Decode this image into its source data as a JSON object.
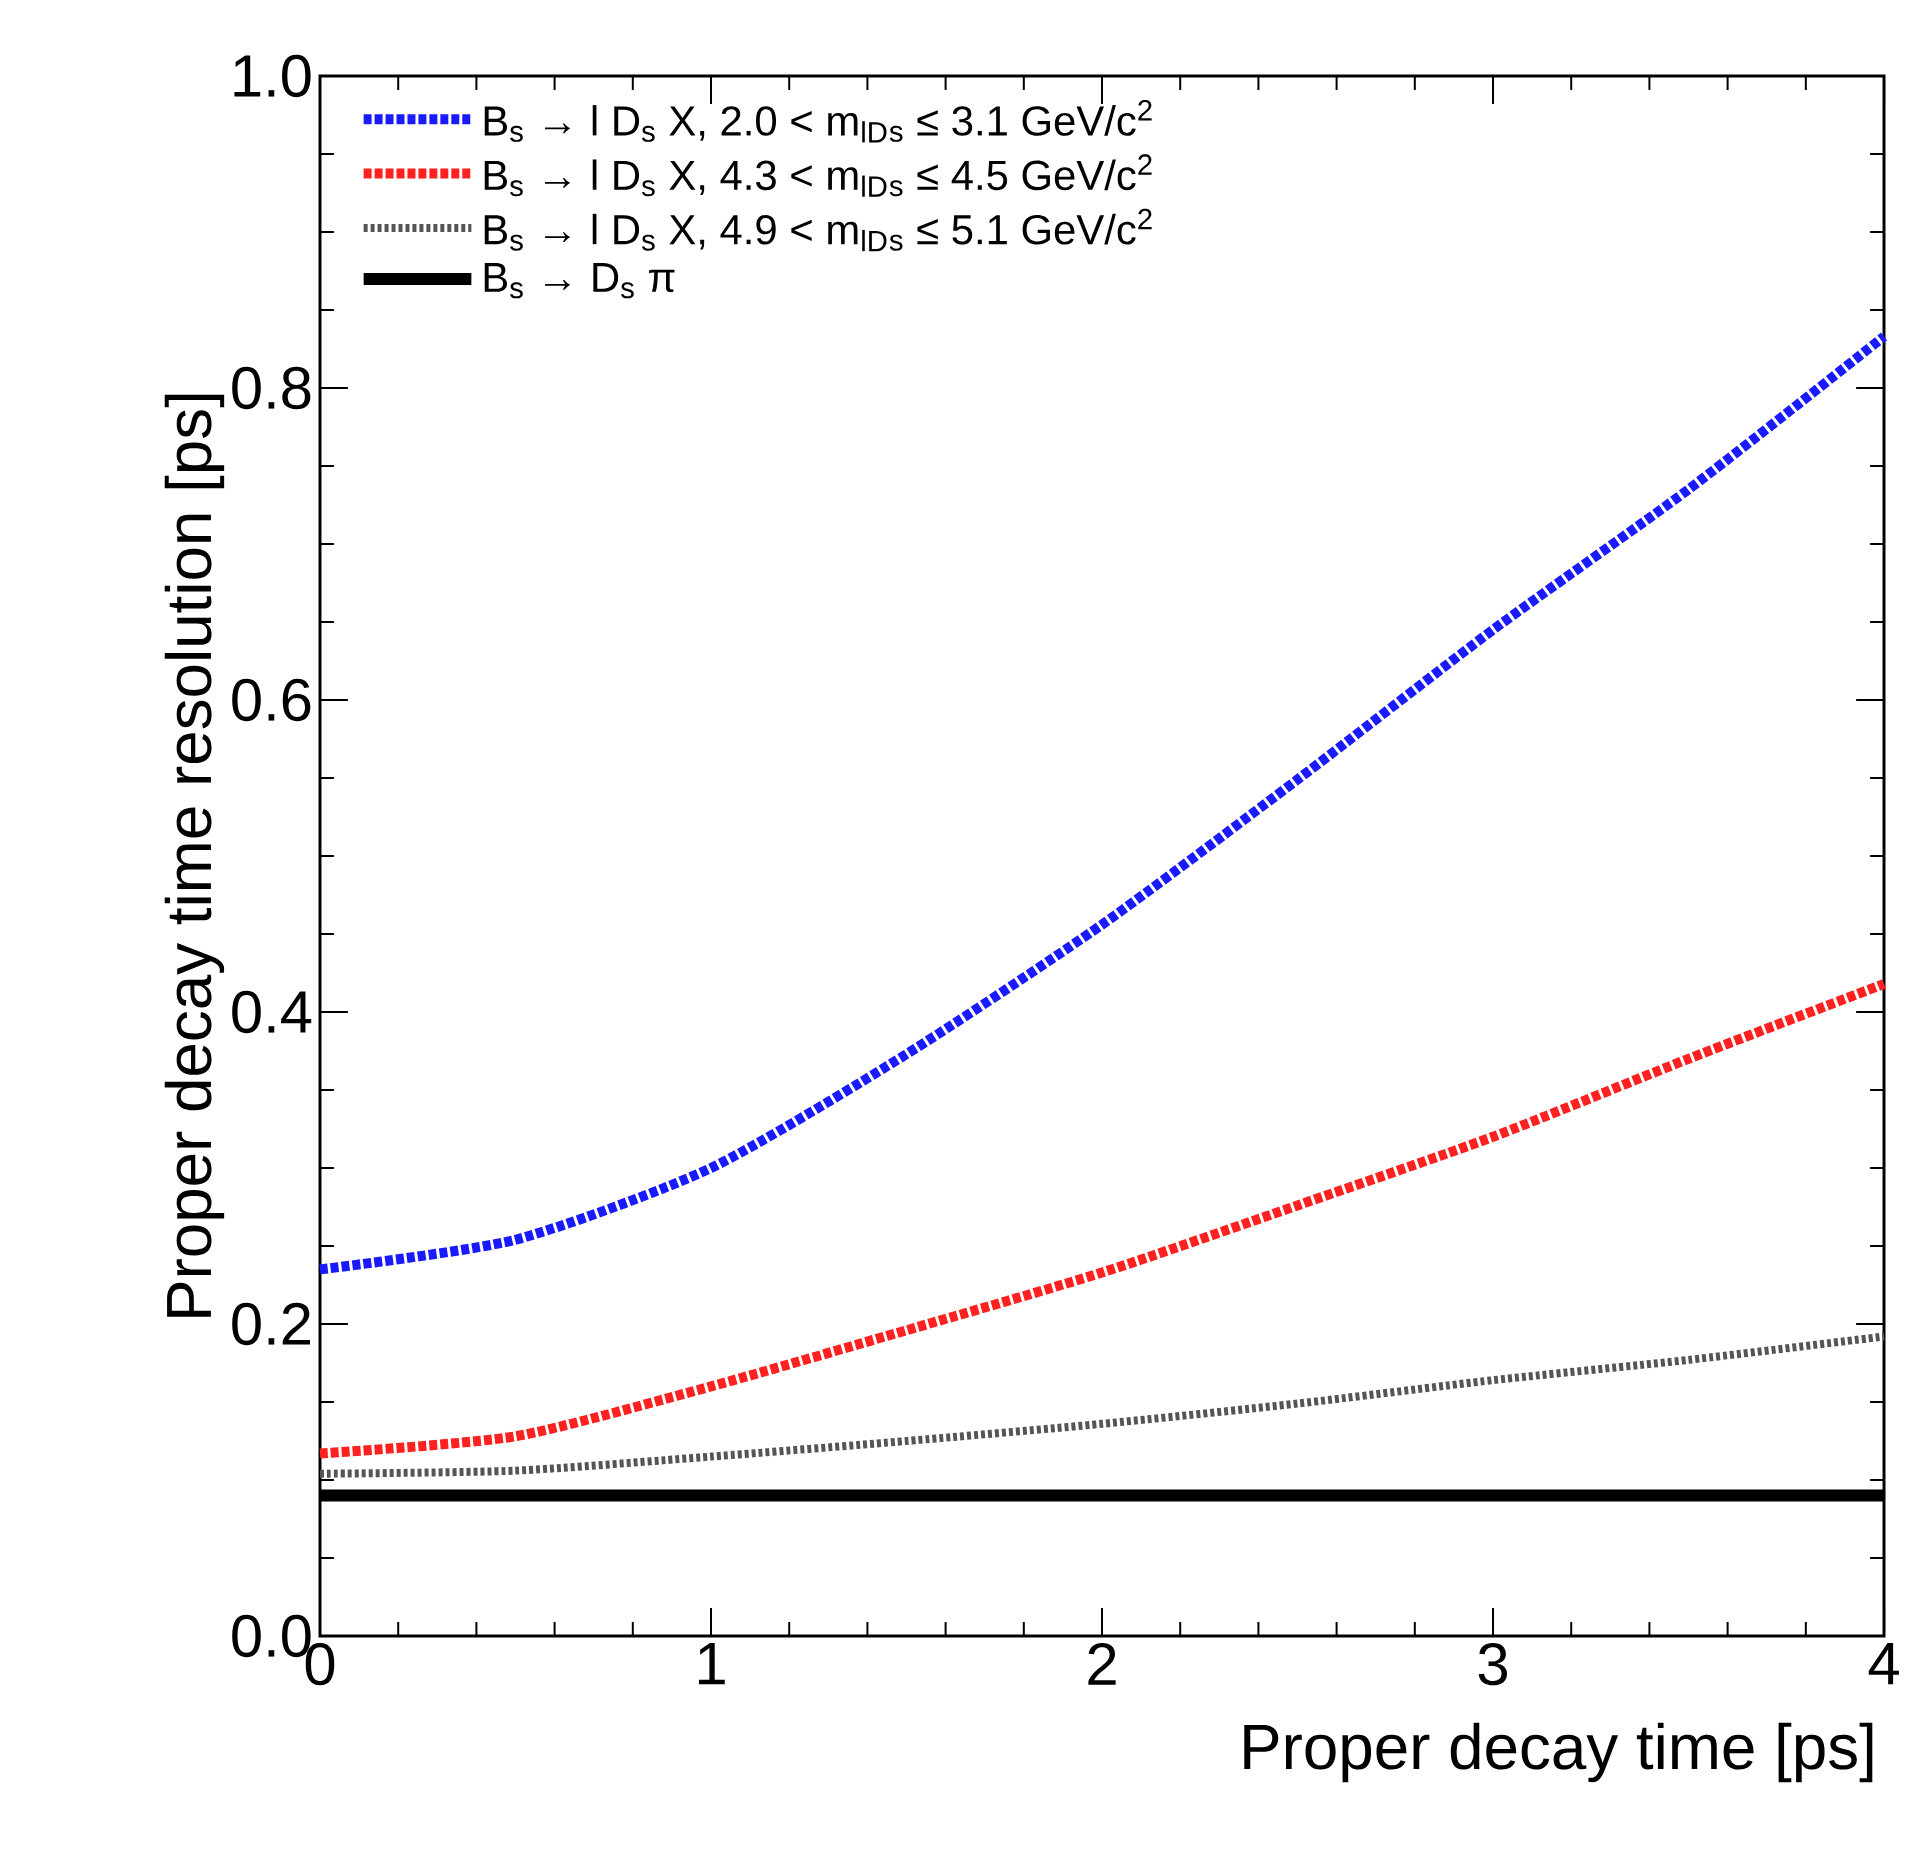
{
  "chart_data": {
    "type": "line",
    "xlabel": "Proper decay time [ps]",
    "ylabel": "Proper decay time resolution [ps]",
    "xlim": [
      0,
      4
    ],
    "ylim": [
      0,
      1
    ],
    "xticks": [
      0,
      1,
      2,
      3,
      4
    ],
    "yticks": [
      {
        "value": 0,
        "label": "0.0"
      },
      {
        "value": 0.2,
        "label": "0.2"
      },
      {
        "value": 0.4,
        "label": "0.4"
      },
      {
        "value": 0.6,
        "label": "0.6"
      },
      {
        "value": 0.8,
        "label": "0.8"
      },
      {
        "value": 1,
        "label": "1.0"
      }
    ],
    "legend": "top left",
    "grid": false,
    "marker": "none",
    "x": [
      0,
      0.5,
      1,
      1.5,
      2,
      2.5,
      3,
      3.5,
      4
    ],
    "series": [
      {
        "name": "B$_{s}$ → l D$_{s}$ X, 2.0 < m$_{lD}$$_{s}$ ≤ 3.1 GeV/c$^{2}$",
        "color": "#1a1aff",
        "line_style": "dashed",
        "values": [
          0.235,
          0.254,
          0.3,
          0.373,
          0.456,
          0.549,
          0.645,
          0.735,
          0.833
        ]
      },
      {
        "name": "B$_{s}$ → l D$_{s}$ X, 4.3 < m$_{lD}$$_{s}$ ≤ 4.5 GeV/c$^{2}$",
        "color": "#ff2020",
        "line_style": "dashed",
        "values": [
          0.117,
          0.128,
          0.16,
          0.196,
          0.233,
          0.276,
          0.32,
          0.37,
          0.418
        ]
      },
      {
        "name": "B$_{s}$ → l D$_{s}$ X, 4.9 < m$_{lD}$$_{s}$ ≤ 5.1 GeV/c$^{2}$",
        "color": "#555555",
        "line_style": "dotted",
        "values": [
          0.104,
          0.106,
          0.115,
          0.125,
          0.136,
          0.149,
          0.164,
          0.177,
          0.192
        ]
      },
      {
        "name": "B$_{s}$ → D$_{s}$ π",
        "color": "#000000",
        "line_style": "solid",
        "values": [
          0.09,
          0.09,
          0.09,
          0.09,
          0.09,
          0.09,
          0.09,
          0.09,
          0.09
        ]
      }
    ]
  }
}
